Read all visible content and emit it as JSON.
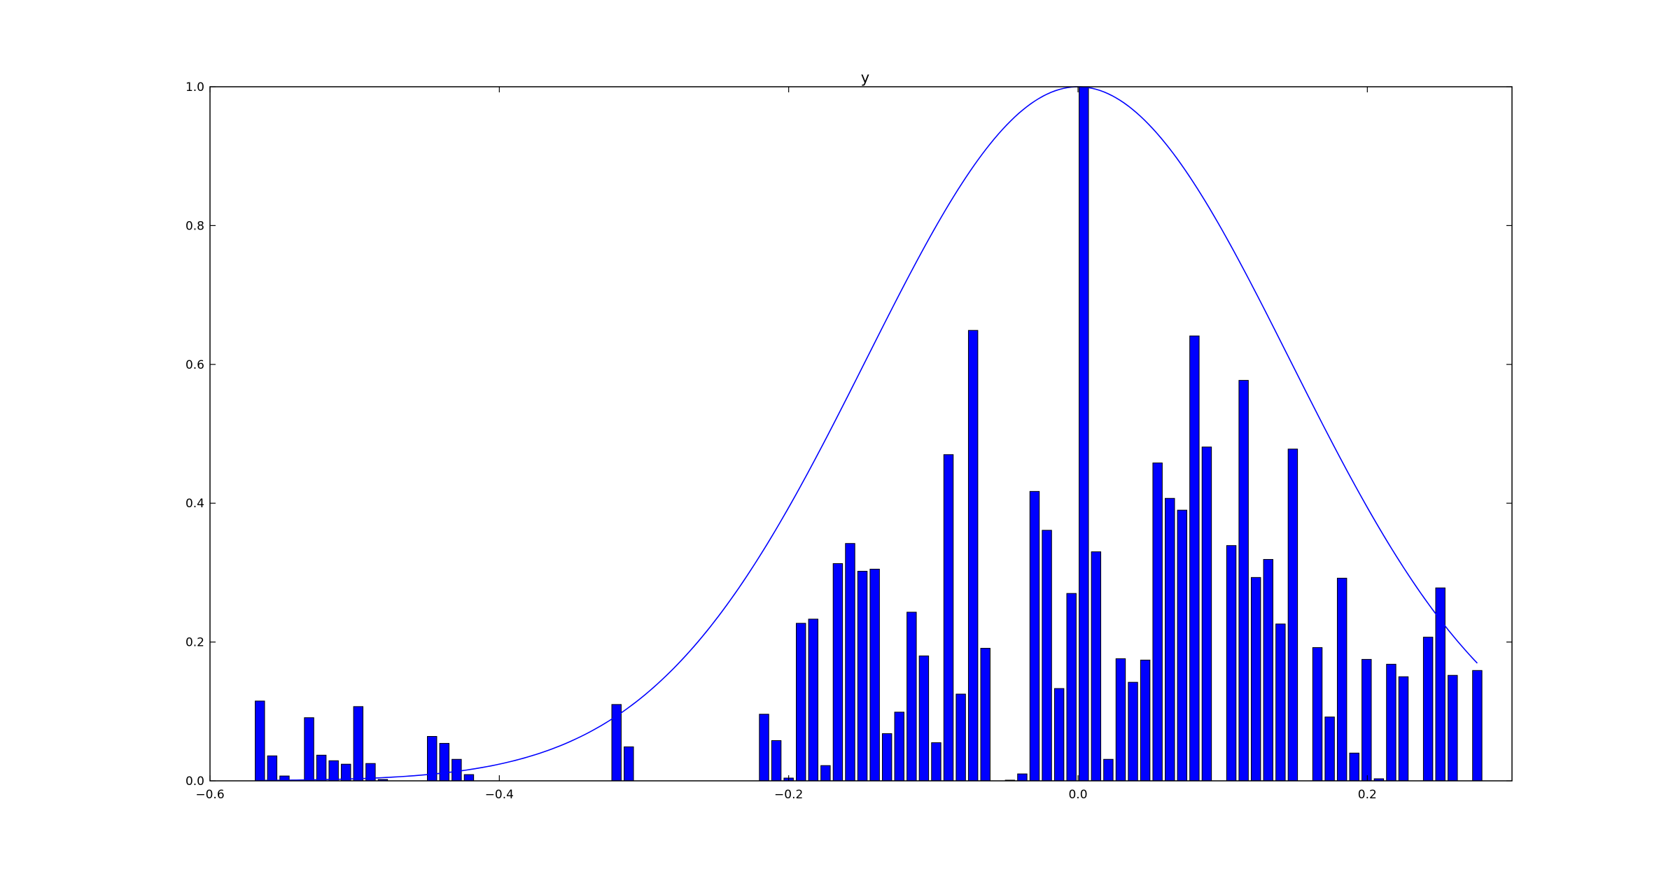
{
  "chart_data": {
    "type": "bar",
    "title": "y",
    "xlabel": "",
    "ylabel": "",
    "xlim": [
      -0.6,
      0.3
    ],
    "ylim": [
      0.0,
      1.0
    ],
    "grid": false,
    "legend": "none",
    "xticks": [
      -0.6,
      -0.4,
      -0.2,
      0.0,
      0.2
    ],
    "xtick_labels": [
      "−0.6",
      "−0.4",
      "−0.2",
      "0.0",
      "0.2"
    ],
    "yticks": [
      0.0,
      0.2,
      0.4,
      0.6,
      0.8,
      1.0
    ],
    "ytick_labels": [
      "0.0",
      "0.2",
      "0.4",
      "0.6",
      "0.8",
      "1.0"
    ],
    "bar_color": "#0000ff",
    "bar_edge_color": "#000000",
    "line_color": "#0000ff",
    "bar_width": 0.0065,
    "bars": {
      "x": [
        -0.5655,
        -0.557,
        -0.5485,
        -0.5315,
        -0.523,
        -0.5145,
        -0.506,
        -0.4975,
        -0.489,
        -0.4805,
        -0.4465,
        -0.438,
        -0.4295,
        -0.421,
        -0.319,
        -0.3105,
        -0.217,
        -0.2085,
        -0.2,
        -0.1915,
        -0.183,
        -0.1745,
        -0.166,
        -0.1575,
        -0.149,
        -0.1405,
        -0.132,
        -0.1235,
        -0.115,
        -0.1065,
        -0.098,
        -0.0895,
        -0.081,
        -0.0725,
        -0.064,
        -0.047,
        -0.0385,
        -0.03,
        -0.0215,
        -0.013,
        -0.0045,
        0.004,
        0.0125,
        0.021,
        0.0295,
        0.038,
        0.0465,
        0.055,
        0.0635,
        0.072,
        0.0805,
        0.089,
        0.106,
        0.1145,
        0.123,
        0.1315,
        0.14,
        0.1485,
        0.1655,
        0.174,
        0.1825,
        0.191,
        0.1995,
        0.208,
        0.2165,
        0.225,
        0.242,
        0.2505,
        0.259,
        0.276
      ],
      "values": [
        0.115,
        0.036,
        0.007,
        0.091,
        0.037,
        0.029,
        0.024,
        0.107,
        0.025,
        0.002,
        0.064,
        0.054,
        0.031,
        0.009,
        0.11,
        0.049,
        0.096,
        0.058,
        0.004,
        0.227,
        0.233,
        0.022,
        0.313,
        0.342,
        0.302,
        0.305,
        0.068,
        0.099,
        0.243,
        0.18,
        0.055,
        0.47,
        0.125,
        0.649,
        0.191,
        0.001,
        0.01,
        0.417,
        0.361,
        0.133,
        0.27,
        1.0,
        0.33,
        0.031,
        0.176,
        0.142,
        0.174,
        0.458,
        0.407,
        0.39,
        0.641,
        0.481,
        0.339,
        0.577,
        0.293,
        0.319,
        0.226,
        0.478,
        0.192,
        0.092,
        0.292,
        0.04,
        0.175,
        0.003,
        0.168,
        0.15,
        0.207,
        0.278,
        0.152,
        0.159
      ]
    },
    "curve": {
      "type": "line",
      "mean": 0.0,
      "sigma": 0.1465,
      "peak": 1.0,
      "x_range": [
        -0.5655,
        0.276
      ]
    }
  }
}
